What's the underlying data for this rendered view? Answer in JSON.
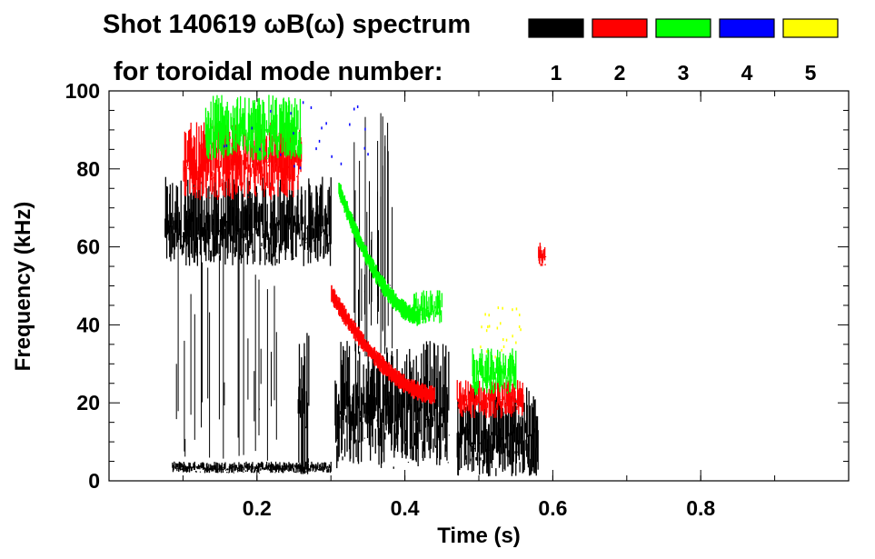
{
  "chart_data": {
    "type": "heatmap",
    "title_line1": "Shot 140619 ωB(ω) spectrum",
    "title_line2": "for toroidal mode number:",
    "xlabel": "Time (s)",
    "ylabel": "Frequency (kHz)",
    "xlim": [
      0.0,
      1.0
    ],
    "ylim": [
      0,
      100
    ],
    "x_ticks": [
      0.2,
      0.4,
      0.6,
      0.8
    ],
    "x_tick_labels": [
      "0.2",
      "0.4",
      "0.6",
      "0.8"
    ],
    "y_ticks": [
      0,
      20,
      40,
      60,
      80,
      100
    ],
    "y_tick_labels": [
      "0",
      "20",
      "40",
      "60",
      "80",
      "100"
    ],
    "legend": {
      "placement": "top-right",
      "entries": [
        {
          "label": "1",
          "color": "#000000"
        },
        {
          "label": "2",
          "color": "#ff0000"
        },
        {
          "label": "3",
          "color": "#00ff00"
        },
        {
          "label": "4",
          "color": "#0000ff"
        },
        {
          "label": "5",
          "color": "#ffff00"
        }
      ]
    },
    "series": [
      {
        "name": "n=1",
        "color": "#000000",
        "features": [
          {
            "kind": "band",
            "t": [
              0.075,
              0.3
            ],
            "f": [
              55,
              78
            ]
          },
          {
            "kind": "band",
            "t": [
              0.085,
              0.3
            ],
            "f": [
              2,
              5
            ]
          },
          {
            "kind": "spikes",
            "t": [
              0.09,
              0.23
            ],
            "f": [
              5,
              75
            ]
          },
          {
            "kind": "band",
            "t": [
              0.255,
              0.27
            ],
            "f": [
              1,
              40
            ]
          },
          {
            "kind": "band",
            "t": [
              0.305,
              0.46
            ],
            "f": [
              3,
              36
            ]
          },
          {
            "kind": "band",
            "t": [
              0.47,
              0.58
            ],
            "f": [
              1,
              24
            ]
          },
          {
            "kind": "spikes",
            "t": [
              0.33,
              0.39
            ],
            "f": [
              30,
              100
            ]
          }
        ]
      },
      {
        "name": "n=2",
        "color": "#ff0000",
        "features": [
          {
            "kind": "band",
            "t": [
              0.1,
              0.26
            ],
            "f": [
              72,
              92
            ]
          },
          {
            "kind": "chirp",
            "t": [
              0.3,
              0.44
            ],
            "f": [
              48,
              22
            ]
          },
          {
            "kind": "band",
            "t": [
              0.47,
              0.56
            ],
            "f": [
              16,
              26
            ]
          },
          {
            "kind": "band",
            "t": [
              0.58,
              0.59
            ],
            "f": [
              55,
              62
            ]
          }
        ]
      },
      {
        "name": "n=3",
        "color": "#00 ff00",
        "features": [
          {
            "kind": "band",
            "t": [
              0.13,
              0.26
            ],
            "f": [
              82,
              99
            ]
          },
          {
            "kind": "chirp",
            "t": [
              0.31,
              0.42
            ],
            "f": [
              75,
              42
            ]
          },
          {
            "kind": "band",
            "t": [
              0.41,
              0.45
            ],
            "f": [
              40,
              49
            ]
          },
          {
            "kind": "band",
            "t": [
              0.49,
              0.55
            ],
            "f": [
              22,
              34
            ]
          }
        ]
      },
      {
        "name": "n=4",
        "color": "#0000ff",
        "features": [
          {
            "kind": "points",
            "t": [
              0.14,
              0.35
            ],
            "f": [
              80,
              100
            ]
          }
        ]
      },
      {
        "name": "n=5",
        "color": "#ffff00",
        "features": [
          {
            "kind": "points",
            "t": [
              0.5,
              0.56
            ],
            "f": [
              30,
              45
            ]
          }
        ]
      }
    ]
  }
}
